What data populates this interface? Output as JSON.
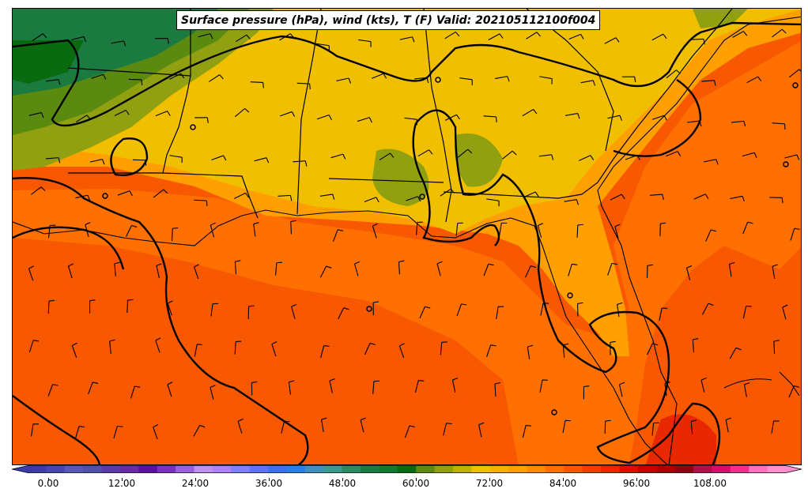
{
  "title": "Surface pressure (hPa), wind (kts), T (F) Valid: 202105112100f004",
  "colorbar": {
    "min": 0,
    "max": 120,
    "step": 3,
    "tick_values": [
      0,
      12,
      24,
      36,
      48,
      60,
      72,
      84,
      96,
      108
    ],
    "tick_labels": [
      "0.00",
      "12.00",
      "24.00",
      "36.00",
      "48.00",
      "60.00",
      "72.00",
      "84.00",
      "96.00",
      "108.00"
    ],
    "colors": [
      "#3a3aa8",
      "#4646b0",
      "#5858b8",
      "#5050a8",
      "#5a3aa8",
      "#6a2aa8",
      "#5a10a0",
      "#7a30c0",
      "#9a60e0",
      "#c090f0",
      "#b080f8",
      "#8080ff",
      "#6070ff",
      "#3a70f0",
      "#2a80e8",
      "#4090c0",
      "#3a9a90",
      "#2a8a60",
      "#1a7a40",
      "#107a30",
      "#0a6a10",
      "#5a8a10",
      "#90a010",
      "#c0b000",
      "#f0c000",
      "#f8b000",
      "#ffa000",
      "#ff8a00",
      "#ff7000",
      "#f85800",
      "#f04000",
      "#e82800",
      "#d81000",
      "#c00000",
      "#a80000",
      "#900010",
      "#b0104a",
      "#d0106a",
      "#f0308a",
      "#ff70c0",
      "#ff90d0"
    ]
  },
  "map_colors": {
    "green_dark": "#0a6a10",
    "green": "#1a7a40",
    "olive": "#5a8a10",
    "yellow_olive": "#90a010",
    "yellow": "#f0c000",
    "amber": "#ffa000",
    "orange": "#ff8a00",
    "orange_red": "#f85800",
    "red": "#e82800"
  }
}
